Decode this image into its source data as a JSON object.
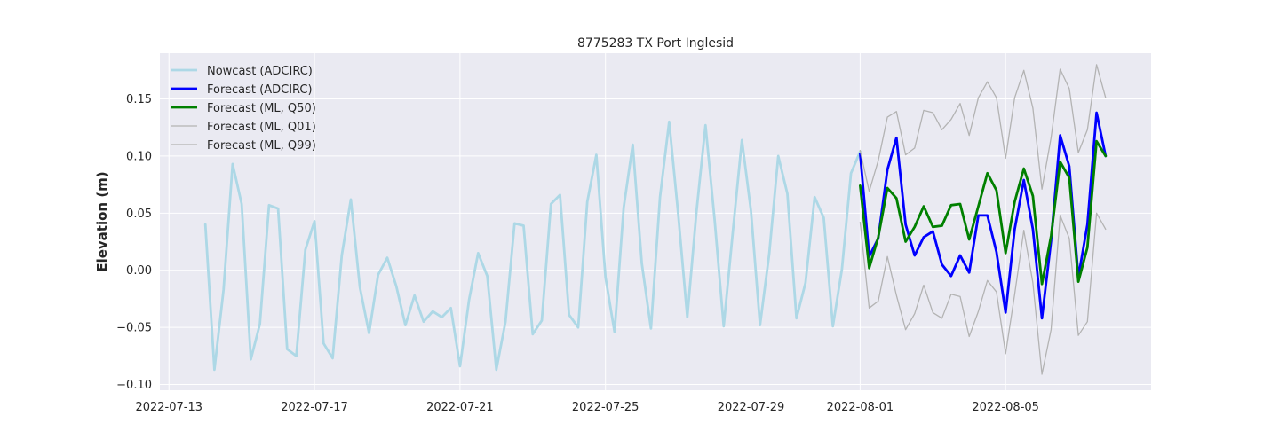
{
  "chart_data": {
    "type": "line",
    "title": "8775283 TX Port Inglesid",
    "xlabel": "",
    "ylabel": "Elevation (m)",
    "xlim": [
      "2022-07-12 18:00",
      "2022-08-09 00:00"
    ],
    "ylim": [
      -0.105,
      0.19
    ],
    "x_tick_labels": [
      "2022-07-13",
      "2022-07-17",
      "2022-07-21",
      "2022-07-25",
      "2022-07-29",
      "2022-08-01",
      "2022-08-05"
    ],
    "y_tick_labels": [
      "−0.10",
      "−0.05",
      "0.00",
      "0.05",
      "0.10",
      "0.15"
    ],
    "y_ticks": [
      -0.1,
      -0.05,
      0.0,
      0.05,
      0.1,
      0.15
    ],
    "grid": true,
    "legend_position": "top-left",
    "colors": {
      "background": "#eaeaf2",
      "grid": "#ffffff",
      "nowcast": "#add8e6",
      "forecast_adcirc": "#0000ff",
      "forecast_q50": "#008000",
      "forecast_quantiles": "#b3b3b3"
    },
    "series": [
      {
        "name": "Nowcast (ADCIRC)",
        "color": "#add8e6",
        "width": 2.8,
        "x": [
          "2022-07-14 00:00",
          "2022-07-14 06:00",
          "2022-07-14 12:00",
          "2022-07-14 18:00",
          "2022-07-15 00:00",
          "2022-07-15 06:00",
          "2022-07-15 12:00",
          "2022-07-15 18:00",
          "2022-07-16 00:00",
          "2022-07-16 06:00",
          "2022-07-16 12:00",
          "2022-07-16 18:00",
          "2022-07-17 00:00",
          "2022-07-17 06:00",
          "2022-07-17 12:00",
          "2022-07-17 18:00",
          "2022-07-18 00:00",
          "2022-07-18 06:00",
          "2022-07-18 12:00",
          "2022-07-18 18:00",
          "2022-07-19 00:00",
          "2022-07-19 06:00",
          "2022-07-19 12:00",
          "2022-07-19 18:00",
          "2022-07-20 00:00",
          "2022-07-20 06:00",
          "2022-07-20 12:00",
          "2022-07-20 18:00",
          "2022-07-21 00:00",
          "2022-07-21 06:00",
          "2022-07-21 12:00",
          "2022-07-21 18:00",
          "2022-07-22 00:00",
          "2022-07-22 06:00",
          "2022-07-22 12:00",
          "2022-07-22 18:00",
          "2022-07-23 00:00",
          "2022-07-23 06:00",
          "2022-07-23 12:00",
          "2022-07-23 18:00",
          "2022-07-24 00:00",
          "2022-07-24 06:00",
          "2022-07-24 12:00",
          "2022-07-24 18:00",
          "2022-07-25 00:00",
          "2022-07-25 06:00",
          "2022-07-25 12:00",
          "2022-07-25 18:00",
          "2022-07-26 00:00",
          "2022-07-26 06:00",
          "2022-07-26 12:00",
          "2022-07-26 18:00",
          "2022-07-27 00:00",
          "2022-07-27 06:00",
          "2022-07-27 12:00",
          "2022-07-27 18:00",
          "2022-07-28 00:00",
          "2022-07-28 06:00",
          "2022-07-28 12:00",
          "2022-07-28 18:00",
          "2022-07-29 00:00",
          "2022-07-29 06:00",
          "2022-07-29 12:00",
          "2022-07-29 18:00",
          "2022-07-30 00:00",
          "2022-07-30 06:00",
          "2022-07-30 12:00",
          "2022-07-30 18:00",
          "2022-07-31 00:00",
          "2022-07-31 06:00",
          "2022-07-31 12:00",
          "2022-07-31 18:00",
          "2022-08-01 00:00"
        ],
        "y": [
          0.04,
          -0.087,
          -0.017,
          0.093,
          0.058,
          -0.078,
          -0.047,
          0.057,
          0.054,
          -0.069,
          -0.075,
          0.018,
          0.043,
          -0.064,
          -0.077,
          0.013,
          0.062,
          -0.015,
          -0.055,
          -0.004,
          0.011,
          -0.014,
          -0.048,
          -0.022,
          -0.045,
          -0.036,
          -0.041,
          -0.033,
          -0.084,
          -0.026,
          0.015,
          -0.005,
          -0.087,
          -0.045,
          0.041,
          0.039,
          -0.056,
          -0.044,
          0.058,
          0.066,
          -0.039,
          -0.05,
          0.06,
          0.101,
          -0.006,
          -0.054,
          0.055,
          0.11,
          0.006,
          -0.051,
          0.064,
          0.13,
          0.049,
          -0.041,
          0.051,
          0.127,
          0.044,
          -0.049,
          0.033,
          0.114,
          0.052,
          -0.048,
          0.014,
          0.1,
          0.067,
          -0.042,
          -0.011,
          0.064,
          0.046,
          -0.049,
          0.001,
          0.085,
          0.104
        ]
      },
      {
        "name": "Forecast (ADCIRC)",
        "color": "#0000ff",
        "width": 2.8,
        "x": [
          "2022-08-01 00:00",
          "2022-08-01 06:00",
          "2022-08-01 12:00",
          "2022-08-01 18:00",
          "2022-08-02 00:00",
          "2022-08-02 06:00",
          "2022-08-02 12:00",
          "2022-08-02 18:00",
          "2022-08-03 00:00",
          "2022-08-03 06:00",
          "2022-08-03 12:00",
          "2022-08-03 18:00",
          "2022-08-04 00:00",
          "2022-08-04 06:00",
          "2022-08-04 12:00",
          "2022-08-04 18:00",
          "2022-08-05 00:00",
          "2022-08-05 06:00",
          "2022-08-05 12:00",
          "2022-08-05 18:00",
          "2022-08-06 00:00",
          "2022-08-06 06:00",
          "2022-08-06 12:00",
          "2022-08-06 18:00",
          "2022-08-07 00:00",
          "2022-08-07 06:00",
          "2022-08-07 12:00",
          "2022-08-07 18:00"
        ],
        "y": [
          0.102,
          0.012,
          0.028,
          0.088,
          0.116,
          0.04,
          0.013,
          0.029,
          0.034,
          0.005,
          -0.005,
          0.013,
          -0.002,
          0.048,
          0.048,
          0.016,
          -0.037,
          0.036,
          0.079,
          0.036,
          -0.042,
          0.026,
          0.118,
          0.091,
          -0.006,
          0.04,
          0.138,
          0.1
        ]
      },
      {
        "name": "Forecast (ML, Q50)",
        "color": "#008000",
        "width": 2.8,
        "x": [
          "2022-08-01 00:00",
          "2022-08-01 06:00",
          "2022-08-01 12:00",
          "2022-08-01 18:00",
          "2022-08-02 00:00",
          "2022-08-02 06:00",
          "2022-08-02 12:00",
          "2022-08-02 18:00",
          "2022-08-03 00:00",
          "2022-08-03 06:00",
          "2022-08-03 12:00",
          "2022-08-03 18:00",
          "2022-08-04 00:00",
          "2022-08-04 06:00",
          "2022-08-04 12:00",
          "2022-08-04 18:00",
          "2022-08-05 00:00",
          "2022-08-05 06:00",
          "2022-08-05 12:00",
          "2022-08-05 18:00",
          "2022-08-06 00:00",
          "2022-08-06 06:00",
          "2022-08-06 12:00",
          "2022-08-06 18:00",
          "2022-08-07 00:00",
          "2022-08-07 06:00",
          "2022-08-07 12:00",
          "2022-08-07 18:00"
        ],
        "y": [
          0.074,
          0.002,
          0.029,
          0.072,
          0.063,
          0.025,
          0.038,
          0.056,
          0.038,
          0.039,
          0.057,
          0.058,
          0.027,
          0.056,
          0.085,
          0.07,
          0.015,
          0.06,
          0.089,
          0.065,
          -0.012,
          0.03,
          0.095,
          0.081,
          -0.01,
          0.02,
          0.113,
          0.1
        ]
      },
      {
        "name": "Forecast (ML, Q01)",
        "color": "#b3b3b3",
        "width": 1.3,
        "x": [
          "2022-08-01 00:00",
          "2022-08-01 06:00",
          "2022-08-01 12:00",
          "2022-08-01 18:00",
          "2022-08-02 00:00",
          "2022-08-02 06:00",
          "2022-08-02 12:00",
          "2022-08-02 18:00",
          "2022-08-03 00:00",
          "2022-08-03 06:00",
          "2022-08-03 12:00",
          "2022-08-03 18:00",
          "2022-08-04 00:00",
          "2022-08-04 06:00",
          "2022-08-04 12:00",
          "2022-08-04 18:00",
          "2022-08-05 00:00",
          "2022-08-05 06:00",
          "2022-08-05 12:00",
          "2022-08-05 18:00",
          "2022-08-06 00:00",
          "2022-08-06 06:00",
          "2022-08-06 12:00",
          "2022-08-06 18:00",
          "2022-08-07 00:00",
          "2022-08-07 06:00",
          "2022-08-07 12:00",
          "2022-08-07 18:00"
        ],
        "y": [
          0.042,
          -0.033,
          -0.027,
          0.012,
          -0.022,
          -0.052,
          -0.038,
          -0.013,
          -0.037,
          -0.042,
          -0.021,
          -0.023,
          -0.058,
          -0.036,
          -0.009,
          -0.019,
          -0.073,
          -0.021,
          0.035,
          -0.011,
          -0.091,
          -0.052,
          0.048,
          0.028,
          -0.057,
          -0.045,
          0.05,
          0.036
        ]
      },
      {
        "name": "Forecast (ML, Q99)",
        "color": "#b3b3b3",
        "width": 1.3,
        "x": [
          "2022-08-01 00:00",
          "2022-08-01 06:00",
          "2022-08-01 12:00",
          "2022-08-01 18:00",
          "2022-08-02 00:00",
          "2022-08-02 06:00",
          "2022-08-02 12:00",
          "2022-08-02 18:00",
          "2022-08-03 00:00",
          "2022-08-03 06:00",
          "2022-08-03 12:00",
          "2022-08-03 18:00",
          "2022-08-04 00:00",
          "2022-08-04 06:00",
          "2022-08-04 12:00",
          "2022-08-04 18:00",
          "2022-08-05 00:00",
          "2022-08-05 06:00",
          "2022-08-05 12:00",
          "2022-08-05 18:00",
          "2022-08-06 00:00",
          "2022-08-06 06:00",
          "2022-08-06 12:00",
          "2022-08-06 18:00",
          "2022-08-07 00:00",
          "2022-08-07 06:00",
          "2022-08-07 12:00",
          "2022-08-07 18:00"
        ],
        "y": [
          0.105,
          0.069,
          0.096,
          0.134,
          0.139,
          0.101,
          0.107,
          0.14,
          0.138,
          0.123,
          0.132,
          0.146,
          0.118,
          0.151,
          0.165,
          0.151,
          0.098,
          0.151,
          0.175,
          0.142,
          0.071,
          0.116,
          0.176,
          0.159,
          0.103,
          0.123,
          0.18,
          0.151
        ]
      }
    ]
  }
}
